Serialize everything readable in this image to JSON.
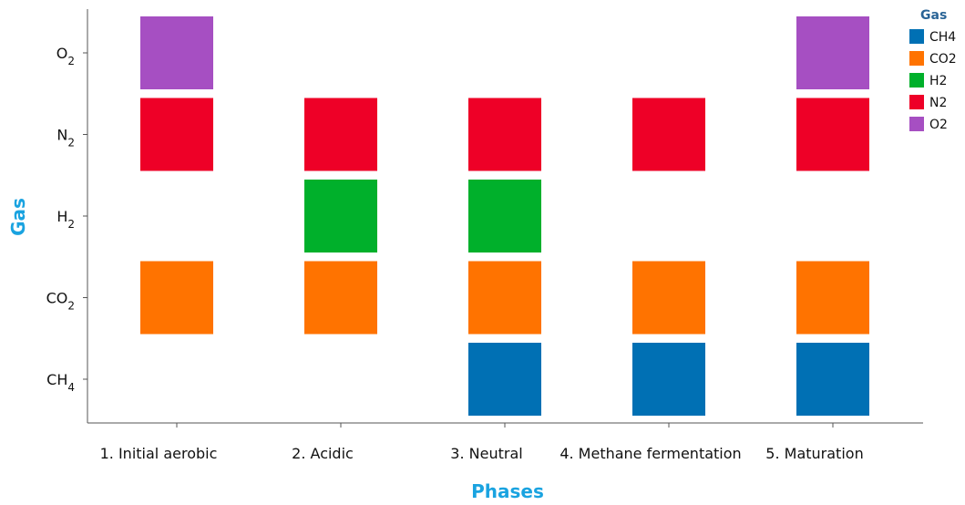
{
  "chart_data": {
    "type": "heatmap",
    "title": "",
    "xlabel": "Phases",
    "ylabel": "Gas",
    "grid": false,
    "legend_placement": "top-right",
    "legend_title": "Gas",
    "categories": [
      "1. Initial aerobic",
      "2. Acidic",
      "3. Neutral",
      "4. Methane fermentation",
      "5. Maturation"
    ],
    "gases": [
      {
        "key": "O2",
        "main": "O",
        "sub": "2",
        "legend": "O2",
        "color": "#a64fc2"
      },
      {
        "key": "N2",
        "main": "N",
        "sub": "2",
        "legend": "N2",
        "color": "#ee0027"
      },
      {
        "key": "H2",
        "main": "H",
        "sub": "2",
        "legend": "H2",
        "color": "#00b02b"
      },
      {
        "key": "CO2",
        "main": "CO",
        "sub": "2",
        "legend": "CO2",
        "color": "#ff7300"
      },
      {
        "key": "CH4",
        "main": "CH",
        "sub": "4",
        "legend": "CH4",
        "color": "#0070b4"
      }
    ],
    "legend_order": [
      "CH4",
      "CO2",
      "H2",
      "N2",
      "O2"
    ],
    "presence": [
      {
        "phase": "1. Initial aerobic",
        "gases": [
          "O2",
          "N2",
          "CO2"
        ]
      },
      {
        "phase": "2. Acidic",
        "gases": [
          "N2",
          "H2",
          "CO2"
        ]
      },
      {
        "phase": "3. Neutral",
        "gases": [
          "N2",
          "H2",
          "CO2",
          "CH4"
        ]
      },
      {
        "phase": "4. Methane fermentation",
        "gases": [
          "N2",
          "CO2",
          "CH4"
        ]
      },
      {
        "phase": "5. Maturation",
        "gases": [
          "O2",
          "N2",
          "CO2",
          "CH4"
        ]
      }
    ]
  }
}
